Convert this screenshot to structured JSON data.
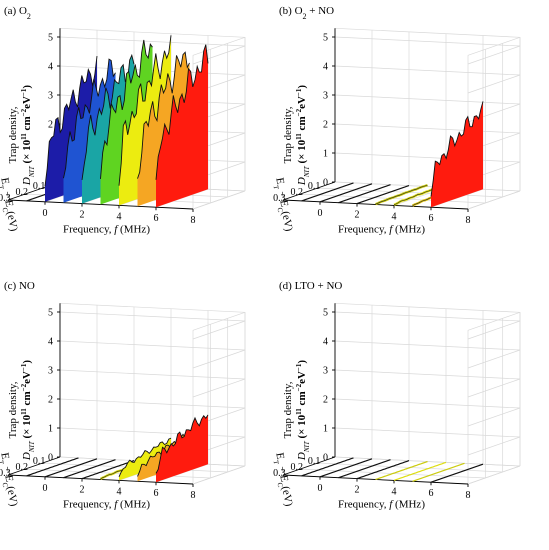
{
  "figure": {
    "panels": [
      "(a) O",
      "(b) O",
      "(c) NO",
      "(d) LTO + NO"
    ],
    "panel_titles": [
      {
        "main": "(a) O",
        "sub": "2",
        "rest": ""
      },
      {
        "main": "(b) O",
        "sub": "2",
        "rest": " + NO"
      },
      {
        "main": "(c) NO",
        "sub": "",
        "rest": ""
      },
      {
        "main": "(d) LTO + NO",
        "sub": "",
        "rest": ""
      }
    ],
    "zlabel_line1": "Trap density,",
    "zlabel_dnit": "D",
    "zlabel_dnit_sub": "NIT",
    "zlabel_unit": " (× 10",
    "zlabel_exp": "11",
    "zlabel_unit2": " cm",
    "zlabel_exp2": "−2",
    "zlabel_unit3": "eV",
    "zlabel_exp3": "−1",
    "zlabel_close": ")",
    "ylabel_main": "E",
    "ylabel_T": "T",
    "ylabel_mid": " − E",
    "ylabel_C": "C",
    "ylabel_unit": "(eV)",
    "xlabel": "Frequency, ",
    "xlabel_f": "f",
    "xlabel_unit": " (MHz)"
  },
  "chart_data": [
    {
      "type": "area",
      "panel": "(a) O2",
      "xlabel": "Frequency, f (MHz)",
      "ylabel": "ET − EC (eV)",
      "zlabel": "Trap density, DNIT (× 10^11 cm^-2 eV^-1)",
      "x_ticks": [
        0,
        2,
        4,
        6,
        8
      ],
      "y_ticks": [
        0.1,
        0.2,
        0.3
      ],
      "z_ticks": [
        0,
        1,
        2,
        3,
        4,
        5
      ],
      "xlim": [
        -2,
        8
      ],
      "ylim": [
        0.05,
        0.35
      ],
      "zlim": [
        0,
        5
      ],
      "series": [
        {
          "x": -1,
          "color": "#111111",
          "max": 0.0
        },
        {
          "x": 0,
          "color": "#1c1ca8",
          "max": 4.0
        },
        {
          "x": 1,
          "color": "#1f54d2",
          "max": 4.1
        },
        {
          "x": 2,
          "color": "#1aa5a5",
          "max": 4.3
        },
        {
          "x": 3,
          "color": "#5fd421",
          "max": 4.85
        },
        {
          "x": 4,
          "color": "#ecec10",
          "max": 4.75
        },
        {
          "x": 5,
          "color": "#f5a623",
          "max": 4.7
        },
        {
          "x": 6,
          "color": "#ff1b0e",
          "max": 4.55
        }
      ]
    },
    {
      "type": "area",
      "panel": "(b) O2 + NO",
      "xlabel": "Frequency, f (MHz)",
      "ylabel": "ET − EC (eV)",
      "zlabel": "Trap density, DNIT (× 10^11 cm^-2 eV^-1)",
      "x_ticks": [
        0,
        2,
        4,
        6,
        8
      ],
      "y_ticks": [
        0.1,
        0.2,
        0.3
      ],
      "z_ticks": [
        0,
        1,
        2,
        3,
        4,
        5
      ],
      "xlim": [
        -2,
        8
      ],
      "ylim": [
        0.05,
        0.35
      ],
      "zlim": [
        0,
        5
      ],
      "series": [
        {
          "x": -1,
          "color": "#111111",
          "max": 0.0
        },
        {
          "x": 0,
          "color": "#111111",
          "max": 0.0
        },
        {
          "x": 1,
          "color": "#111111",
          "max": 0.0
        },
        {
          "x": 2,
          "color": "#111111",
          "max": 0.0
        },
        {
          "x": 3,
          "color": "#cccc10",
          "max": 0.05
        },
        {
          "x": 4,
          "color": "#dede12",
          "max": 0.1
        },
        {
          "x": 5,
          "color": "#e0c412",
          "max": 0.1
        },
        {
          "x": 6,
          "color": "#ff1b0e",
          "max": 2.7
        }
      ]
    },
    {
      "type": "area",
      "panel": "(c) NO",
      "xlabel": "Frequency, f (MHz)",
      "ylabel": "ET − EC (eV)",
      "zlabel": "Trap density, DNIT (× 10^11 cm^-2 eV^-1)",
      "x_ticks": [
        0,
        2,
        4,
        6,
        8
      ],
      "y_ticks": [
        0.1,
        0.2,
        0.3
      ],
      "z_ticks": [
        0,
        1,
        2,
        3,
        4,
        5
      ],
      "xlim": [
        -2,
        8
      ],
      "ylim": [
        0.05,
        0.35
      ],
      "zlim": [
        0,
        5
      ],
      "series": [
        {
          "x": -1,
          "color": "#111111",
          "max": 0.0
        },
        {
          "x": 0,
          "color": "#111111",
          "max": 0.0
        },
        {
          "x": 1,
          "color": "#111111",
          "max": 0.0
        },
        {
          "x": 2,
          "color": "#111111",
          "max": 0.0
        },
        {
          "x": 3,
          "color": "#dede12",
          "max": 0.1
        },
        {
          "x": 4,
          "color": "#ecec10",
          "max": 0.8
        },
        {
          "x": 5,
          "color": "#f5a623",
          "max": 1.0
        },
        {
          "x": 6,
          "color": "#ff1b0e",
          "max": 1.7
        }
      ]
    },
    {
      "type": "area",
      "panel": "(d) LTO + NO",
      "xlabel": "Frequency, f (MHz)",
      "ylabel": "ET − EC (eV)",
      "zlabel": "Trap density, DNIT (× 10^11 cm^-2 eV^-1)",
      "x_ticks": [
        0,
        2,
        4,
        6,
        8
      ],
      "y_ticks": [
        0.1,
        0.2,
        0.3
      ],
      "z_ticks": [
        0,
        1,
        2,
        3,
        4,
        5
      ],
      "xlim": [
        -2,
        8
      ],
      "ylim": [
        0.05,
        0.35
      ],
      "zlim": [
        0,
        5
      ],
      "series": [
        {
          "x": -1,
          "color": "#111111",
          "max": 0.0
        },
        {
          "x": 0,
          "color": "#111111",
          "max": 0.0
        },
        {
          "x": 1,
          "color": "#111111",
          "max": 0.0
        },
        {
          "x": 2,
          "color": "#111111",
          "max": 0.0
        },
        {
          "x": 3,
          "color": "#cccc10",
          "max": 0.0
        },
        {
          "x": 4,
          "color": "#dede12",
          "max": 0.0
        },
        {
          "x": 5,
          "color": "#cccc10",
          "max": 0.0
        },
        {
          "x": 6,
          "color": "#111111",
          "max": 0.0
        }
      ]
    }
  ]
}
